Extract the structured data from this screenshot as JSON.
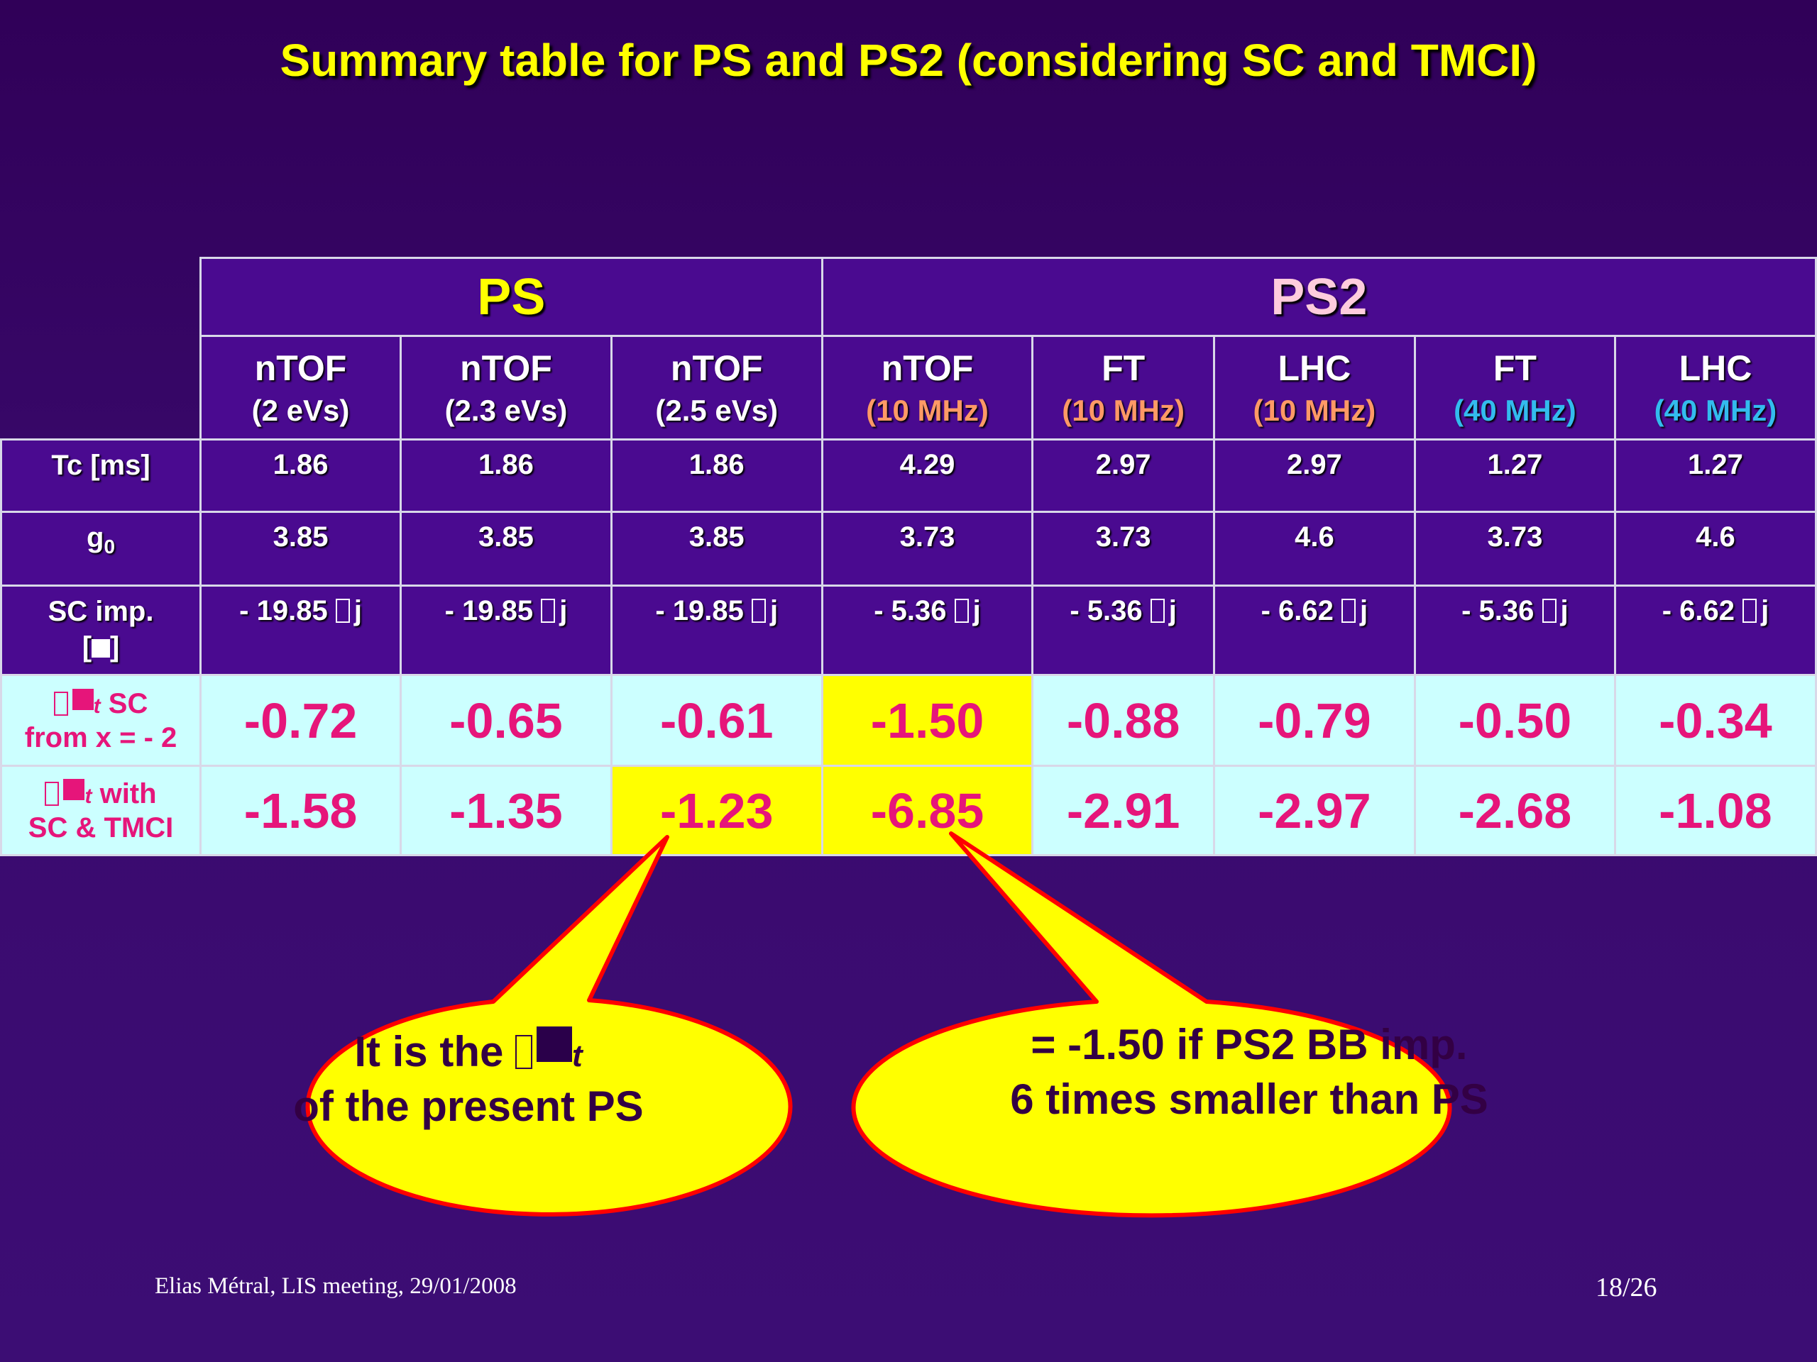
{
  "title": "Summary table for PS and PS2 (considering SC and TMCI)",
  "groups": {
    "ps": "PS",
    "ps2": "PS2"
  },
  "columns": [
    {
      "name": "nTOF",
      "sub": "(2 eVs)"
    },
    {
      "name": "nTOF",
      "sub": "(2.3 eVs)"
    },
    {
      "name": "nTOF",
      "sub": "(2.5 eVs)"
    },
    {
      "name": "nTOF",
      "sub": "(10 MHz)"
    },
    {
      "name": "FT",
      "sub": "(10 MHz)"
    },
    {
      "name": "LHC",
      "sub": "(10 MHz)"
    },
    {
      "name": "FT",
      "sub": "(40 MHz)"
    },
    {
      "name": "LHC",
      "sub": "(40 MHz)"
    }
  ],
  "rows": {
    "tc": {
      "label": "Tc [ms]",
      "values": [
        "1.86",
        "1.86",
        "1.86",
        "4.29",
        "2.97",
        "2.97",
        "1.27",
        "1.27"
      ]
    },
    "g0": {
      "label_main": "g",
      "label_sub": "0",
      "values": [
        "3.85",
        "3.85",
        "3.85",
        "3.73",
        "3.73",
        "4.6",
        "3.73",
        "4.6"
      ]
    },
    "sc_imp": {
      "label_line1": "SC imp.",
      "label_line2": "[",
      "label_line2_end": "]",
      "values": [
        "- 19.85",
        "- 19.85",
        "- 19.85",
        "- 5.36",
        "- 5.36",
        "- 6.62",
        "- 5.36",
        "- 6.62"
      ],
      "unit": "j"
    },
    "sc": {
      "label_suffix": "SC",
      "label_line2": "from x = - 2",
      "values": [
        "-0.72",
        "-0.65",
        "-0.61",
        "-1.50",
        "-0.88",
        "-0.79",
        "-0.50",
        "-0.34"
      ],
      "highlight_index": 3
    },
    "tmci": {
      "label_suffix": "with",
      "label_line2": "SC & TMCI",
      "values": [
        "-1.58",
        "-1.35",
        "-1.23",
        "-6.85",
        "-2.91",
        "-2.97",
        "-2.68",
        "-1.08"
      ],
      "highlight_indices": [
        2,
        3
      ]
    }
  },
  "row_sub_t": "t",
  "callouts": {
    "left": {
      "line1": "It is the",
      "sub": "t",
      "line2": "of the present PS"
    },
    "right": {
      "line1": "= -1.50 if PS2 BB imp.",
      "line2": "6 times smaller than PS"
    }
  },
  "footer": {
    "left": "Elias Métral, LIS meeting, 29/01/2008",
    "right": "18/26"
  },
  "colors": {
    "title": "#ffff00",
    "magenta": "#e6157a",
    "highlight": "#ffff00",
    "cyan_row": "#ccffff",
    "cell_purple": "#4a0a90",
    "callout_fill": "#ffff00",
    "callout_stroke": "#ff0000"
  }
}
